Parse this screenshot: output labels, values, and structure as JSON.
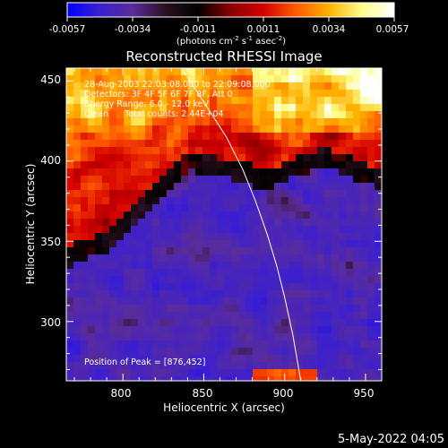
{
  "colorbar": {
    "stops": [
      "#0000ff",
      "#3b1fd0",
      "#5a2c9b",
      "#2a1020",
      "#000000",
      "#8b0000",
      "#d40000",
      "#ff5a00",
      "#ffb000",
      "#ffff8a",
      "#ffffff"
    ],
    "range": [
      -0.0057,
      0.0057
    ],
    "tick_labels": [
      "-0.0057",
      "-0.0034",
      "-0.0011",
      "0.0011",
      "0.0034",
      "0.0057"
    ],
    "unit_label_parts": [
      "(photons cm",
      "-2",
      " s",
      "-1",
      " asec",
      "-2",
      ")"
    ]
  },
  "chart_data": {
    "type": "heatmap",
    "title": "Reconstructed RHESSI Image",
    "xlabel": "Heliocentric X (arcsec)",
    "ylabel": "Heliocentric Y (arcsec)",
    "xlim": [
      765,
      960
    ],
    "ylim": [
      263,
      458
    ],
    "xticks": [
      800,
      850,
      900,
      950
    ],
    "yticks": [
      300,
      350,
      400,
      450
    ],
    "xtick_labels": [
      "800",
      "850",
      "900",
      "950"
    ],
    "ytick_labels": [
      "300",
      "350",
      "400",
      "450"
    ],
    "limb_curve": {
      "x": [
        836,
        850,
        864,
        874,
        882,
        889,
        895,
        900,
        905,
        910
      ],
      "y": [
        458,
        437,
        415,
        395,
        375,
        355,
        335,
        315,
        292,
        263
      ]
    },
    "annotations": [
      "28-Aug-2003 22:03:08.000 to 22:09:08.000",
      "Detectors: 3F 4F 5F 6F 7F 8F, Att 0",
      "Energy Range: 6.0 - 12.0 keV",
      "Clean      Total counts: 2.44E+04"
    ],
    "peak_label": "Position of Peak = [876,452]",
    "peak": [
      876,
      452
    ]
  },
  "footer": {
    "date": "5-May-2022 04:05"
  }
}
